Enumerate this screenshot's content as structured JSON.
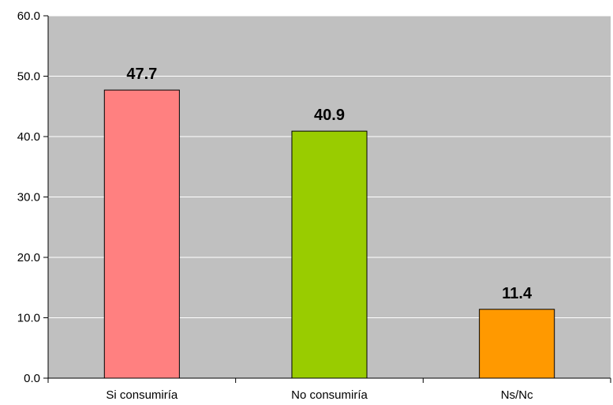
{
  "chart_data": {
    "type": "bar",
    "categories": [
      "Si consumiría",
      "No consumiría",
      "Ns/Nc"
    ],
    "values": [
      47.7,
      40.9,
      11.4
    ],
    "value_labels": [
      "47.7",
      "40.9",
      "11.4"
    ],
    "bar_colors": [
      "#FF8080",
      "#99CC00",
      "#FF9900"
    ],
    "plot_background": "#C0C0C0",
    "ylim": [
      0,
      60
    ],
    "yticks": [
      0,
      10,
      20,
      30,
      40,
      50,
      60
    ],
    "ytick_labels": [
      "0.0",
      "10.0",
      "20.0",
      "30.0",
      "40.0",
      "50.0",
      "60.0"
    ],
    "grid": true,
    "legend": false
  }
}
